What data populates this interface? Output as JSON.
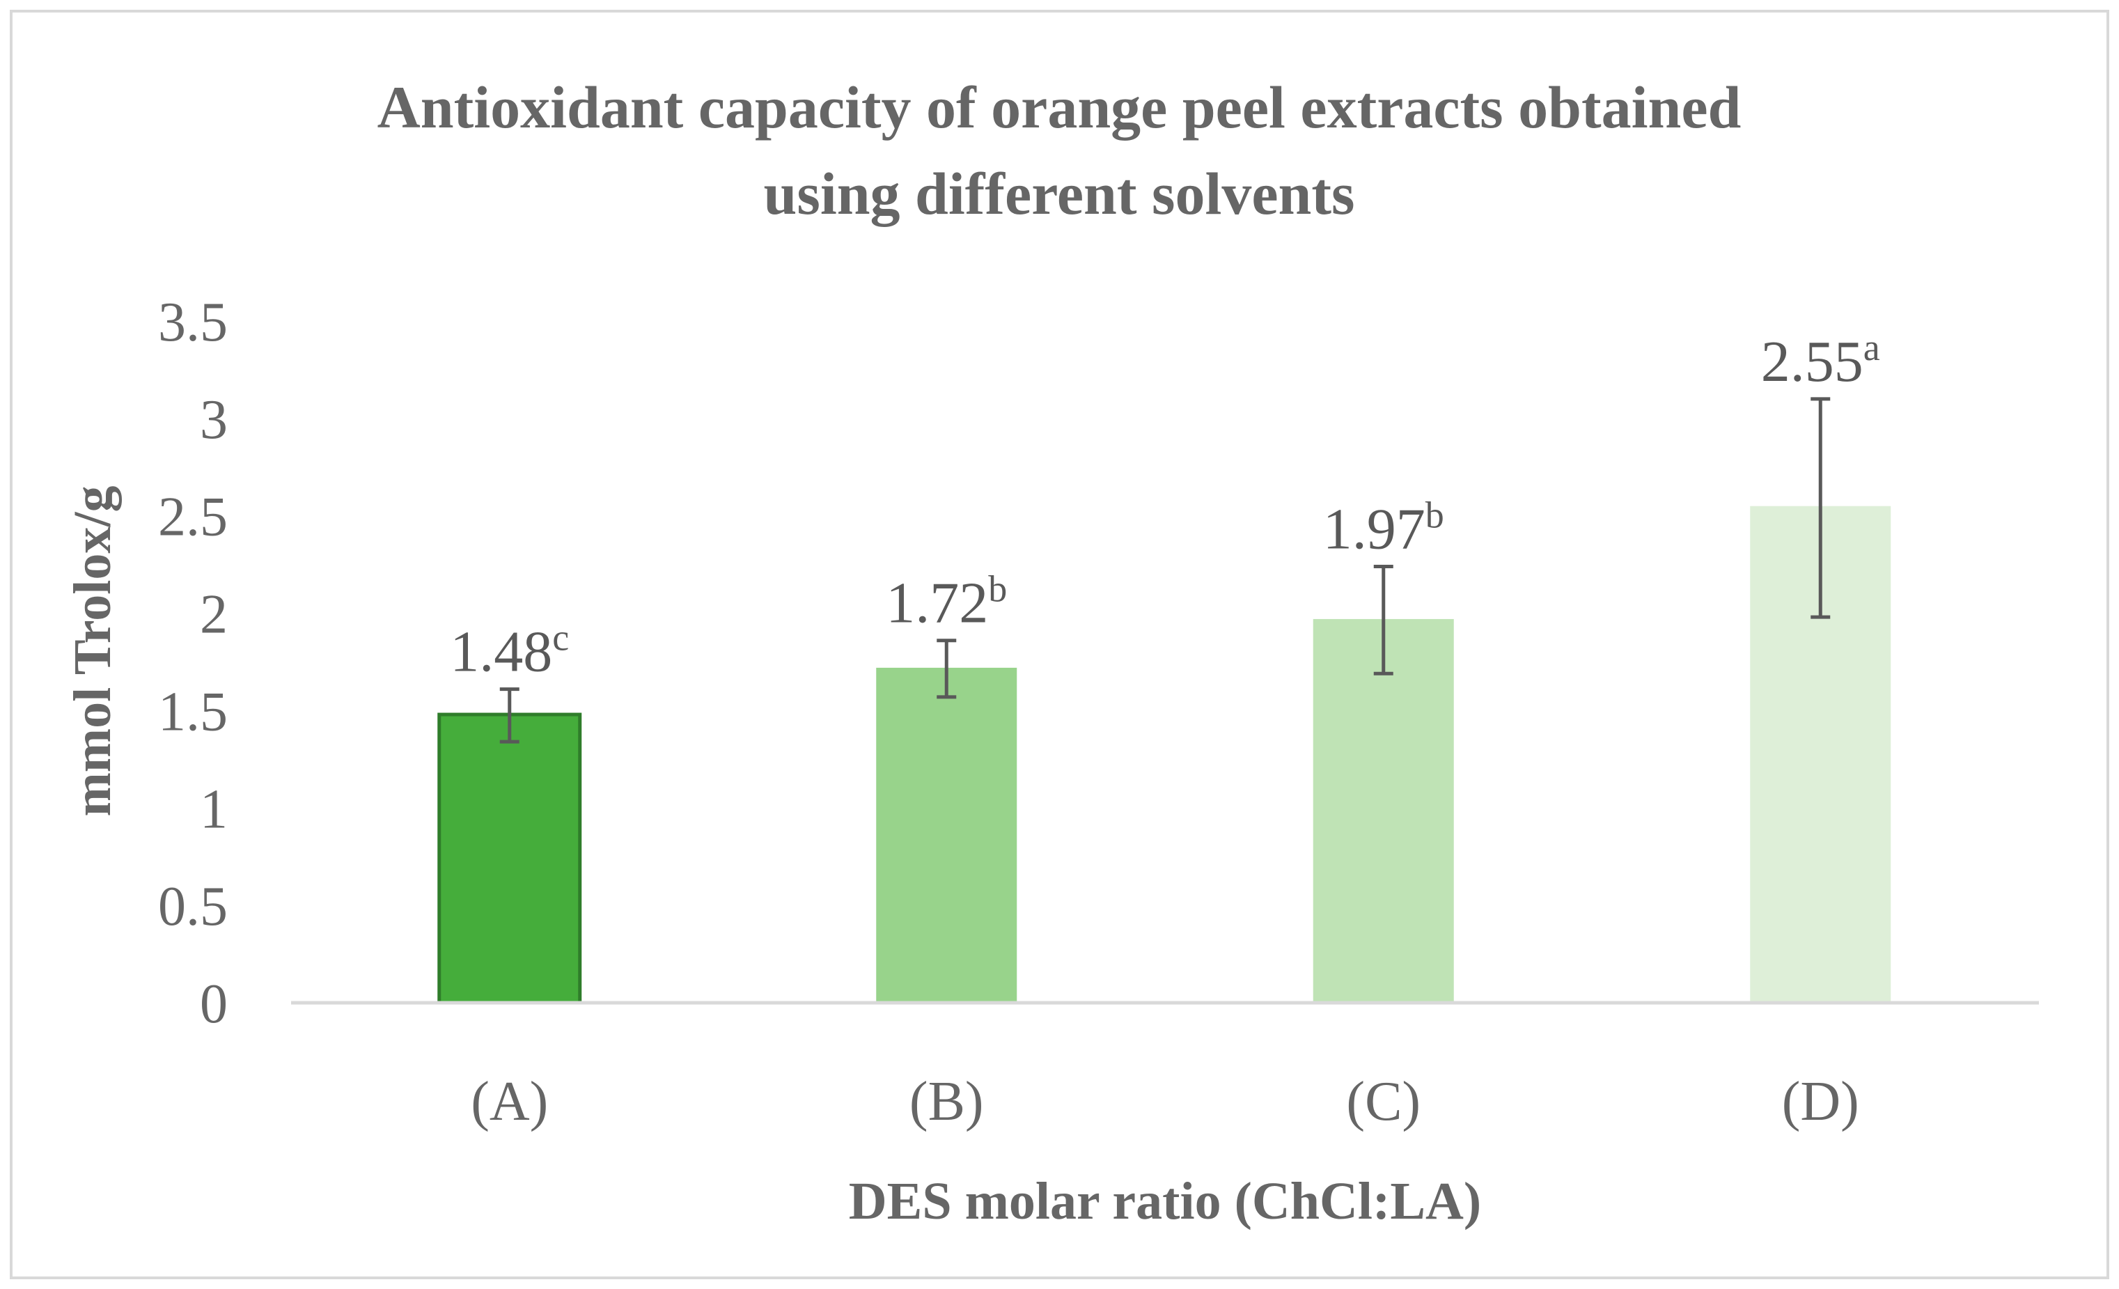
{
  "chart_data": {
    "type": "bar",
    "title_lines": [
      "Antioxidant capacity of orange peel extracts obtained",
      "using different solvents"
    ],
    "xlabel": "DES molar ratio (ChCl:LA)",
    "ylabel": "mmol Trolox/g",
    "categories": [
      "(A)",
      "(B)",
      "(C)",
      "(D)"
    ],
    "values": [
      1.48,
      1.72,
      1.97,
      2.55
    ],
    "error_low": [
      1.34,
      1.57,
      1.69,
      1.98
    ],
    "error_high": [
      1.61,
      1.86,
      2.24,
      3.1
    ],
    "labels": [
      {
        "value": "1.48",
        "letter": "c"
      },
      {
        "value": "1.72",
        "letter": "b"
      },
      {
        "value": "1.97",
        "letter": "b"
      },
      {
        "value": "2.55",
        "letter": "a"
      }
    ],
    "ylim": [
      0,
      3.5
    ],
    "yticks": [
      {
        "value": 0,
        "label": "0"
      },
      {
        "value": 0.5,
        "label": "0.5"
      },
      {
        "value": 1,
        "label": "1"
      },
      {
        "value": 1.5,
        "label": "1.5"
      },
      {
        "value": 2,
        "label": "2"
      },
      {
        "value": 2.5,
        "label": "2.5"
      },
      {
        "value": 3,
        "label": "3"
      },
      {
        "value": 3.5,
        "label": "3.5"
      }
    ],
    "grid": false,
    "legend": "none",
    "colors": {
      "bars": [
        "#45ad3b",
        "#98d38b",
        "#bfe3b5",
        "#deefd8"
      ],
      "bar_edge_first": "#2f7d2a",
      "error": "#595959",
      "axis": "#d9d9d9",
      "frame": "#d9d9d9",
      "text": "#666666"
    }
  }
}
